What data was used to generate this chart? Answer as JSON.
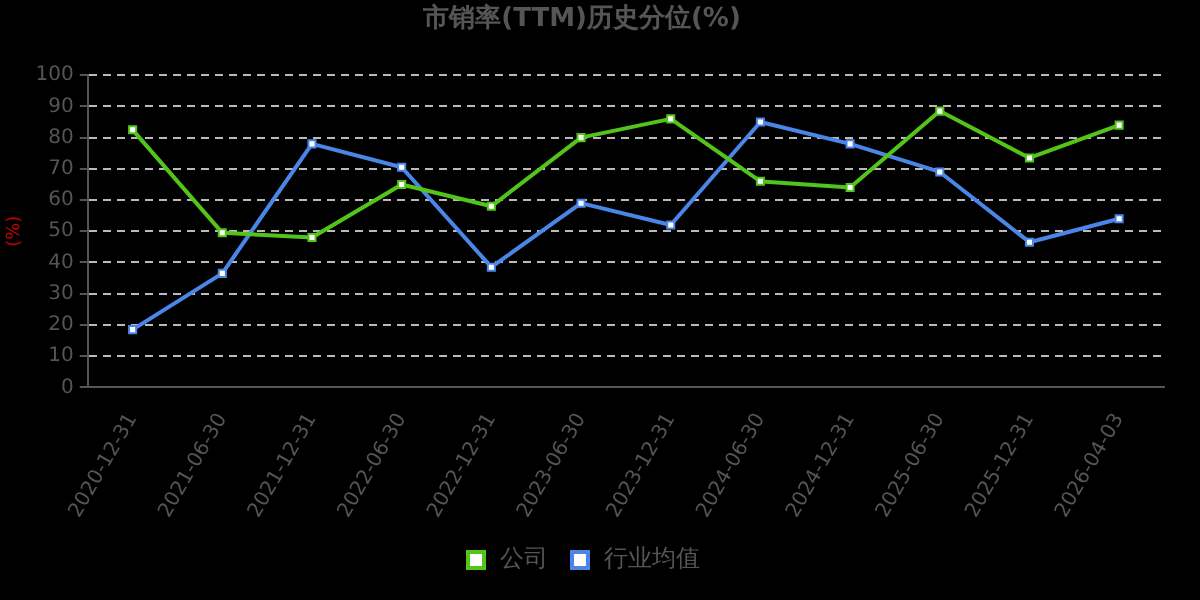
{
  "chart_data": {
    "type": "line",
    "title": "市销率(TTM)历史分位(%)",
    "ylabel": "(%)",
    "categories": [
      "2020-12-31",
      "2021-06-30",
      "2021-12-31",
      "2022-06-30",
      "2022-12-31",
      "2023-06-30",
      "2023-12-31",
      "2024-06-30",
      "2024-12-31",
      "2025-06-30",
      "2025-12-31",
      "2026-04-03"
    ],
    "series": [
      {
        "name": "公司",
        "color": "#52c41a",
        "values": [
          82.5,
          49.5,
          48,
          65,
          58,
          80,
          86,
          66,
          64,
          88.5,
          73.5,
          84
        ]
      },
      {
        "name": "行业均值",
        "color": "#4a86e8",
        "values": [
          18.5,
          36.5,
          78,
          70.5,
          38.5,
          59,
          52,
          85,
          78,
          69,
          46.5,
          54
        ]
      }
    ],
    "ylim": [
      0,
      100
    ],
    "yticks": [
      0,
      10,
      20,
      30,
      40,
      50,
      60,
      70,
      80,
      90,
      100
    ],
    "grid": "y",
    "legend": "bottom",
    "marker": "square",
    "line_style": "solid"
  }
}
